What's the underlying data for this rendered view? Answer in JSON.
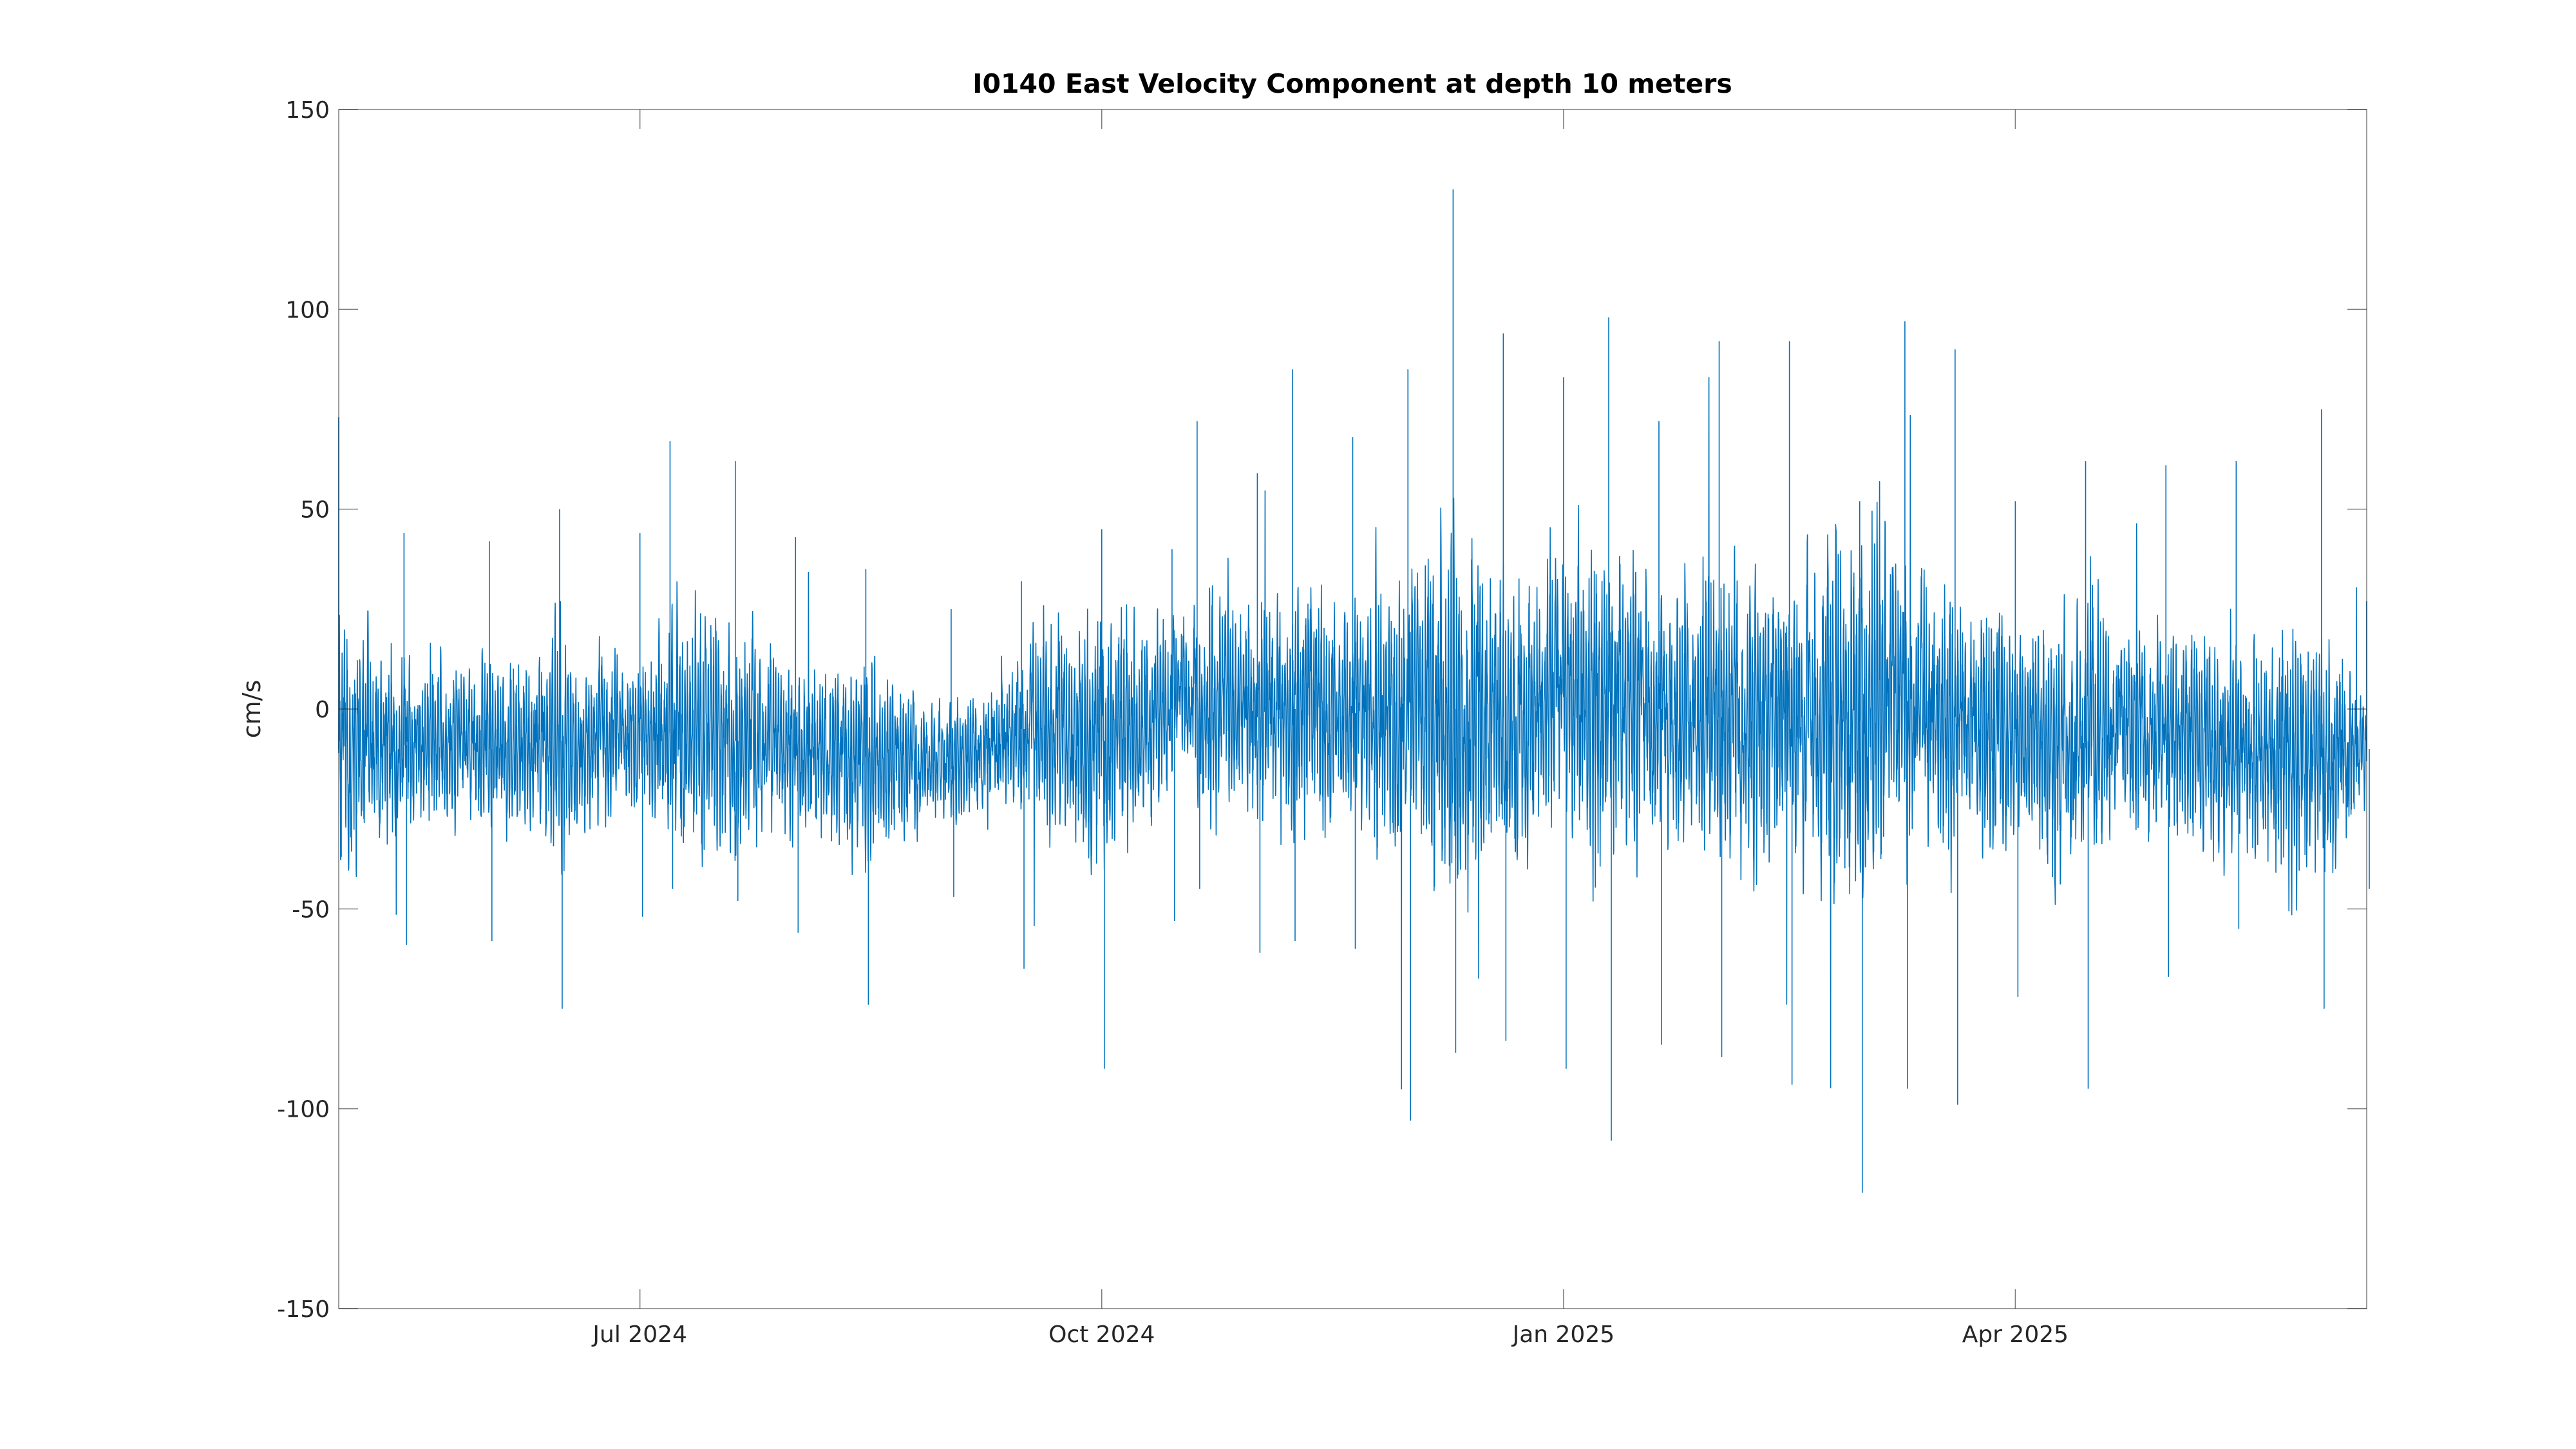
{
  "chart_data": {
    "type": "line",
    "title": "I0140 East Velocity Component at depth 10 meters",
    "xlabel": "",
    "ylabel": "cm/s",
    "xlim": [
      "2024-05-02",
      "2025-06-10"
    ],
    "ylim": [
      -150,
      150
    ],
    "yticks": [
      -150,
      -100,
      -50,
      0,
      50,
      100,
      150
    ],
    "xticks": [
      {
        "date": "2024-07-01",
        "label": "Jul 2024"
      },
      {
        "date": "2024-10-01",
        "label": "Oct 2024"
      },
      {
        "date": "2025-01-01",
        "label": "Jan 2025"
      },
      {
        "date": "2025-04-01",
        "label": "Apr 2025"
      }
    ],
    "grid": false,
    "legend": "none",
    "line_color": "#0072bd",
    "series": [
      {
        "sampling": "hourly",
        "x_start": "2024-05-02",
        "x_end": "2025-06-10",
        "envelope": [
          {
            "date": "2024-05-02",
            "min": -37,
            "max": 73,
            "mean": -10
          },
          {
            "date": "2024-05-15",
            "min": -59,
            "max": 44,
            "mean": -9
          },
          {
            "date": "2024-06-01",
            "min": -58,
            "max": 42,
            "mean": -10
          },
          {
            "date": "2024-06-15",
            "min": -75,
            "max": 50,
            "mean": -8
          },
          {
            "date": "2024-07-01",
            "min": -52,
            "max": 44,
            "mean": -8
          },
          {
            "date": "2024-07-07",
            "min": -45,
            "max": 67,
            "mean": -6
          },
          {
            "date": "2024-07-20",
            "min": -48,
            "max": 62,
            "mean": -8
          },
          {
            "date": "2024-08-01",
            "min": -56,
            "max": 43,
            "mean": -10
          },
          {
            "date": "2024-08-15",
            "min": -74,
            "max": 35,
            "mean": -12
          },
          {
            "date": "2024-09-01",
            "min": -47,
            "max": 25,
            "mean": -15
          },
          {
            "date": "2024-09-15",
            "min": -65,
            "max": 32,
            "mean": -5
          },
          {
            "date": "2024-10-01",
            "min": -90,
            "max": 45,
            "mean": -8
          },
          {
            "date": "2024-10-15",
            "min": -53,
            "max": 40,
            "mean": 0
          },
          {
            "date": "2024-10-20",
            "min": -45,
            "max": 72,
            "mean": 2
          },
          {
            "date": "2024-11-01",
            "min": -61,
            "max": 59,
            "mean": -2
          },
          {
            "date": "2024-11-08",
            "min": -58,
            "max": 85,
            "mean": 0
          },
          {
            "date": "2024-11-20",
            "min": -60,
            "max": 68,
            "mean": -1
          },
          {
            "date": "2024-12-01",
            "min": -103,
            "max": 85,
            "mean": -2
          },
          {
            "date": "2024-12-10",
            "min": -86,
            "max": 130,
            "mean": 0
          },
          {
            "date": "2024-12-20",
            "min": -83,
            "max": 94,
            "mean": -2
          },
          {
            "date": "2025-01-01",
            "min": -90,
            "max": 83,
            "mean": 3
          },
          {
            "date": "2025-01-10",
            "min": -108,
            "max": 98,
            "mean": 4
          },
          {
            "date": "2025-01-20",
            "min": -84,
            "max": 72,
            "mean": 0
          },
          {
            "date": "2025-02-01",
            "min": -87,
            "max": 92,
            "mean": -2
          },
          {
            "date": "2025-02-15",
            "min": -94,
            "max": 92,
            "mean": 0
          },
          {
            "date": "2025-03-01",
            "min": -121,
            "max": 52,
            "mean": -3
          },
          {
            "date": "2025-03-10",
            "min": -95,
            "max": 97,
            "mean": 2
          },
          {
            "date": "2025-03-20",
            "min": -99,
            "max": 90,
            "mean": -2
          },
          {
            "date": "2025-04-01",
            "min": -72,
            "max": 52,
            "mean": -5
          },
          {
            "date": "2025-04-15",
            "min": -95,
            "max": 62,
            "mean": -8
          },
          {
            "date": "2025-05-01",
            "min": -67,
            "max": 61,
            "mean": -6
          },
          {
            "date": "2025-05-15",
            "min": -55,
            "max": 62,
            "mean": -10
          },
          {
            "date": "2025-06-01",
            "min": -75,
            "max": 75,
            "mean": -12
          },
          {
            "date": "2025-06-10",
            "min": -45,
            "max": 27,
            "mean": -10
          }
        ]
      }
    ]
  }
}
